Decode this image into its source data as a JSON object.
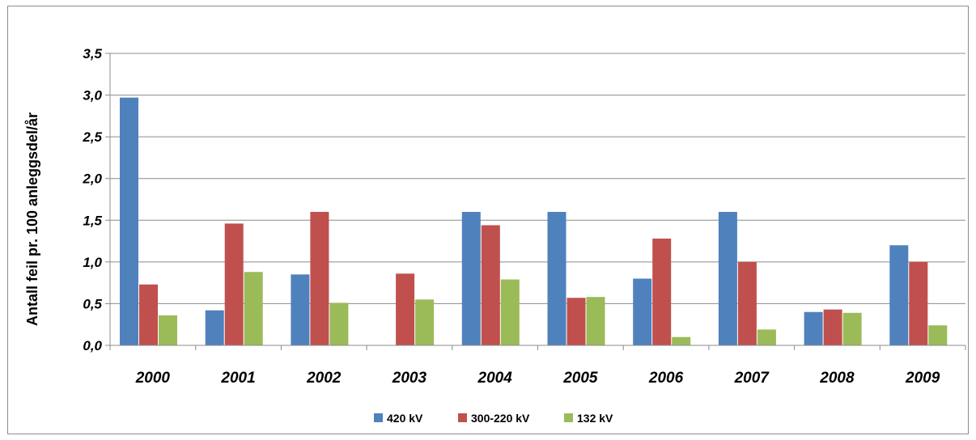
{
  "chart_data": {
    "type": "bar",
    "title": "",
    "xlabel": "",
    "ylabel": "Antall feil pr. 100 anleggsdel/år",
    "ylim": [
      0,
      3.5
    ],
    "ytick_values": [
      0,
      0.5,
      1.0,
      1.5,
      2.0,
      2.5,
      3.0,
      3.5
    ],
    "ytick_labels": [
      "0,0",
      "0,5",
      "1,0",
      "1,5",
      "2,0",
      "2,5",
      "3,0",
      "3,5"
    ],
    "grid": true,
    "legend_position": "bottom",
    "categories": [
      "2000",
      "2001",
      "2002",
      "2003",
      "2004",
      "2005",
      "2006",
      "2007",
      "2008",
      "2009"
    ],
    "series": [
      {
        "name": "420 kV",
        "color": "#4f81bd",
        "values": [
          2.97,
          0.42,
          0.85,
          0.0,
          1.6,
          1.6,
          0.8,
          1.6,
          0.4,
          1.2
        ]
      },
      {
        "name": "300-220 kV",
        "color": "#c0504d",
        "values": [
          0.73,
          1.46,
          1.6,
          0.86,
          1.44,
          0.57,
          1.28,
          1.0,
          0.43,
          1.0
        ]
      },
      {
        "name": "132 kV",
        "color": "#9bbb59",
        "values": [
          0.36,
          0.88,
          0.51,
          0.55,
          0.79,
          0.58,
          0.1,
          0.19,
          0.39,
          0.24
        ]
      }
    ]
  }
}
